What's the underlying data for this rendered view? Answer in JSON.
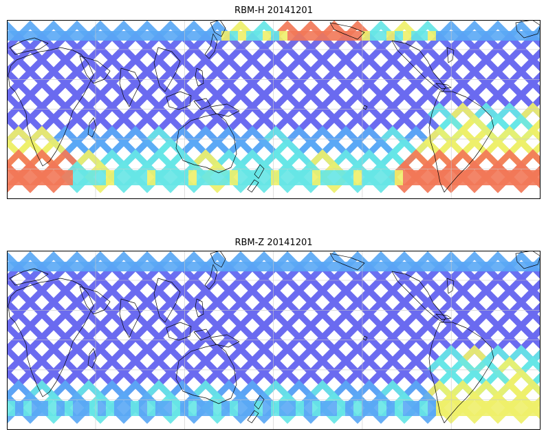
{
  "figure": {
    "panels": [
      {
        "title": "RBM-H 20141201",
        "variant": "h"
      },
      {
        "title": "RBM-Z 20141201",
        "variant": "z"
      }
    ]
  },
  "colors": {
    "low": "#6a6af0",
    "mid_low": "#5aa8f5",
    "mid": "#66e6e6",
    "mid_high": "#eef06a",
    "high": "#f27858",
    "coast": "#000000",
    "grid": "#c8c8c8",
    "frame": "#000000",
    "background": "#ffffff"
  }
}
